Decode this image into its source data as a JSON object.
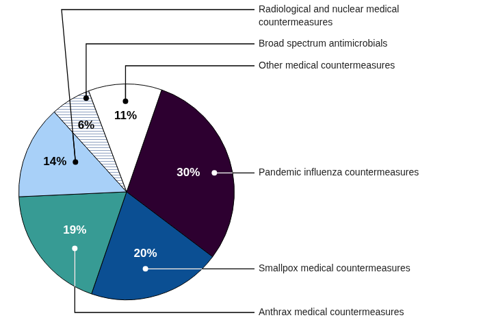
{
  "chart_data": {
    "type": "pie",
    "categories": [
      "Pandemic influenza countermeasures",
      "Smallpox medical countermeasures",
      "Anthrax medical countermeasures",
      "Radiological and nuclear medical countermeasures",
      "Broad spectrum antimicrobials",
      "Other medical countermeasures"
    ],
    "values": [
      30,
      20,
      19,
      14,
      6,
      11
    ],
    "value_labels": [
      "30%",
      "20%",
      "19%",
      "14%",
      "6%",
      "11%"
    ],
    "colors": [
      "#2d0030",
      "#0b4f93",
      "#379b94",
      "#a8d0f8",
      "#8ea0c0",
      "#ffffff"
    ],
    "data_labels": true
  }
}
